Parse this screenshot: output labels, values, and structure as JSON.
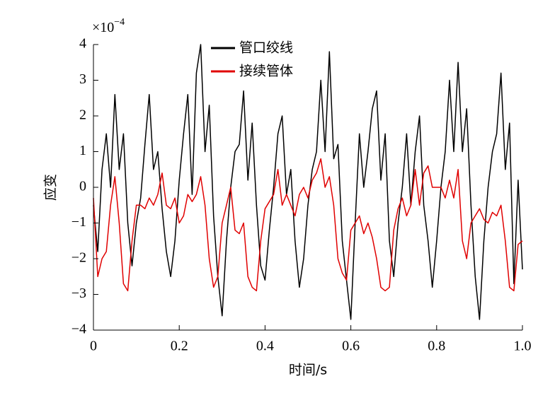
{
  "chart_data": {
    "type": "line",
    "xlabel": "时间/s",
    "ylabel": "应变",
    "multiplier": {
      "base": "×10",
      "exponent": "−4"
    },
    "legend": "top",
    "xlim": [
      0,
      1.0
    ],
    "ylim": [
      -4,
      4
    ],
    "xticks": [
      0,
      0.2,
      0.4,
      0.6,
      0.8,
      {
        "value": 1.0,
        "label": "1.0"
      }
    ],
    "yticks": [
      {
        "value": -4,
        "label": "−4"
      },
      {
        "value": -3,
        "label": "−3"
      },
      {
        "value": -2,
        "label": "−2"
      },
      {
        "value": -1,
        "label": "−1"
      },
      0,
      1,
      2,
      3,
      4
    ],
    "x": [
      0,
      0.01,
      0.02,
      0.03,
      0.04,
      0.05,
      0.06,
      0.07,
      0.08,
      0.09,
      0.1,
      0.11,
      0.12,
      0.13,
      0.14,
      0.15,
      0.16,
      0.17,
      0.18,
      0.19,
      0.2,
      0.21,
      0.22,
      0.23,
      0.24,
      0.25,
      0.26,
      0.27,
      0.28,
      0.29,
      0.3,
      0.31,
      0.32,
      0.33,
      0.34,
      0.35,
      0.36,
      0.37,
      0.38,
      0.39,
      0.4,
      0.41,
      0.42,
      0.43,
      0.44,
      0.45,
      0.46,
      0.47,
      0.48,
      0.49,
      0.5,
      0.51,
      0.52,
      0.53,
      0.54,
      0.55,
      0.56,
      0.57,
      0.58,
      0.59,
      0.6,
      0.61,
      0.62,
      0.63,
      0.64,
      0.65,
      0.66,
      0.67,
      0.68,
      0.69,
      0.7,
      0.71,
      0.72,
      0.73,
      0.74,
      0.75,
      0.76,
      0.77,
      0.78,
      0.79,
      0.8,
      0.81,
      0.82,
      0.83,
      0.84,
      0.85,
      0.86,
      0.87,
      0.88,
      0.89,
      0.9,
      0.91,
      0.92,
      0.93,
      0.94,
      0.95,
      0.96,
      0.97,
      0.98,
      0.99,
      1.0
    ],
    "series": [
      {
        "name": "管口绞线",
        "color": "#000000",
        "values": [
          -0.5,
          -1.8,
          0.5,
          1.5,
          0.0,
          2.6,
          0.5,
          1.5,
          -1.0,
          -2.2,
          -1.0,
          -0.3,
          1.2,
          2.6,
          0.5,
          1.0,
          -0.6,
          -1.8,
          -2.5,
          -1.5,
          0.2,
          1.5,
          2.6,
          -0.2,
          3.2,
          4.0,
          1.0,
          2.3,
          -0.8,
          -2.5,
          -3.6,
          -1.5,
          0.0,
          1.0,
          1.2,
          2.7,
          0.2,
          1.8,
          -0.5,
          -2.2,
          -2.6,
          -1.2,
          0.0,
          1.5,
          2.0,
          -0.2,
          0.5,
          -1.5,
          -2.8,
          -2.0,
          -0.5,
          0.5,
          1.0,
          3.0,
          1.0,
          3.8,
          0.8,
          1.2,
          -1.5,
          -2.6,
          -3.7,
          -1.0,
          1.5,
          0.0,
          1.0,
          2.2,
          2.7,
          0.2,
          1.5,
          -1.5,
          -2.5,
          -1.0,
          0.0,
          1.5,
          -0.5,
          1.0,
          2.0,
          -0.5,
          -1.5,
          -2.8,
          -1.5,
          0.0,
          1.0,
          3.0,
          1.0,
          3.5,
          1.0,
          2.2,
          -0.5,
          -2.5,
          -3.7,
          -1.5,
          0.0,
          1.0,
          1.5,
          3.2,
          0.5,
          1.8,
          -2.7,
          0.2,
          -2.3
        ]
      },
      {
        "name": "接续管体",
        "color": "#e00000",
        "values": [
          -0.3,
          -2.5,
          -2.0,
          -1.8,
          -0.5,
          0.3,
          -1.0,
          -2.7,
          -2.9,
          -1.5,
          -0.5,
          -0.5,
          -0.6,
          -0.3,
          -0.5,
          -0.2,
          0.4,
          -0.5,
          -0.6,
          -0.3,
          -1.0,
          -0.8,
          -0.2,
          -0.4,
          -0.2,
          0.3,
          -0.5,
          -2.0,
          -2.8,
          -2.5,
          -1.0,
          -0.5,
          0.0,
          -1.2,
          -1.3,
          -1.0,
          -2.5,
          -2.8,
          -2.9,
          -1.5,
          -0.6,
          -0.4,
          -0.2,
          0.5,
          -0.5,
          -0.2,
          -0.5,
          -0.8,
          -0.2,
          0.0,
          -0.3,
          0.2,
          0.4,
          0.8,
          0.0,
          0.3,
          -0.5,
          -2.0,
          -2.4,
          -2.6,
          -1.2,
          -1.0,
          -0.8,
          -1.3,
          -1.0,
          -1.4,
          -2.0,
          -2.8,
          -2.9,
          -2.8,
          -1.2,
          -0.6,
          -0.3,
          -0.8,
          -0.5,
          0.5,
          -0.5,
          0.4,
          0.6,
          0.0,
          0.0,
          0.0,
          -0.3,
          0.2,
          -0.3,
          0.5,
          -1.5,
          -2.0,
          -1.0,
          -0.8,
          -0.6,
          -0.9,
          -1.0,
          -0.7,
          -0.8,
          -0.5,
          -1.5,
          -2.8,
          -2.9,
          -1.6,
          -1.5
        ]
      }
    ]
  }
}
